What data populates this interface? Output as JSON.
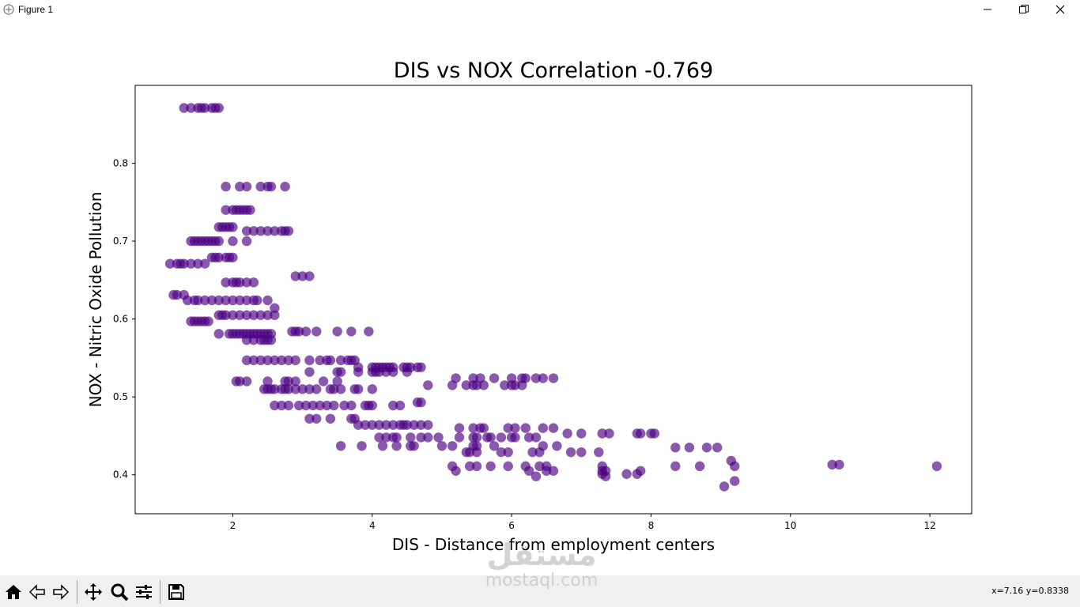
{
  "window": {
    "title": "Figure 1"
  },
  "watermark": {
    "arabic": "مستقل",
    "latin": "mostaql.com"
  },
  "status": {
    "coords": "x=7.16 y=0.8338"
  },
  "toolbar": {
    "buttons": [
      "home-icon",
      "back-icon",
      "forward-icon",
      "pan-icon",
      "zoom-icon",
      "configure-subplots-icon",
      "save-icon"
    ]
  },
  "colors": {
    "point": "#4b0082",
    "axes": "#000000"
  },
  "chart_data": {
    "type": "scatter",
    "title": "DIS vs NOX Correlation -0.769",
    "xlabel": "DIS - Distance from employment centers",
    "ylabel": "NOX - Nitric Oxide Pollution",
    "xlim": [
      0.6,
      12.6
    ],
    "ylim": [
      0.35,
      0.9
    ],
    "xticks": [
      2,
      4,
      6,
      8,
      10,
      12
    ],
    "yticks": [
      0.4,
      0.5,
      0.6,
      0.7,
      0.8
    ],
    "xtick_labels": [
      "2",
      "4",
      "6",
      "8",
      "10",
      "12"
    ],
    "ytick_labels": [
      "0.4",
      "0.5",
      "0.6",
      "0.7",
      "0.8"
    ],
    "series": [
      {
        "name": "DIS vs NOX",
        "x": [
          1.3,
          1.4,
          1.5,
          1.55,
          1.6,
          1.7,
          1.75,
          1.8,
          1.9,
          2.1,
          2.2,
          2.4,
          2.5,
          2.55,
          2.75,
          1.9,
          2.0,
          2.05,
          2.1,
          2.15,
          2.2,
          2.25,
          2.2,
          2.3,
          2.4,
          2.5,
          2.6,
          2.7,
          2.75,
          2.8,
          1.8,
          1.85,
          1.9,
          1.95,
          2.0,
          1.4,
          1.45,
          1.5,
          1.55,
          1.6,
          1.65,
          1.7,
          1.75,
          1.8,
          2.0,
          2.2,
          1.7,
          1.75,
          1.8,
          1.9,
          1.95,
          2.0,
          1.1,
          1.2,
          1.25,
          1.3,
          1.4,
          1.5,
          1.6,
          2.9,
          3.0,
          3.1,
          1.9,
          2.0,
          2.05,
          2.1,
          2.2,
          2.3,
          1.15,
          1.2,
          1.3,
          1.35,
          1.45,
          1.5,
          1.6,
          1.7,
          1.8,
          1.9,
          2.0,
          2.1,
          2.2,
          2.3,
          2.35,
          2.5,
          2.6,
          1.8,
          1.85,
          1.9,
          2.0,
          2.1,
          2.2,
          2.3,
          2.4,
          2.5,
          2.6,
          1.4,
          1.45,
          1.5,
          1.55,
          1.6,
          1.65,
          1.8,
          1.95,
          2.0,
          2.05,
          2.1,
          2.15,
          2.2,
          2.25,
          2.3,
          2.35,
          2.4,
          2.45,
          2.5,
          2.55,
          2.85,
          2.9,
          2.95,
          3.05,
          3.2,
          3.5,
          3.7,
          3.95,
          2.2,
          2.3,
          2.4,
          2.45,
          2.5,
          2.55,
          2.2,
          2.3,
          2.4,
          2.5,
          2.6,
          2.7,
          2.8,
          2.9,
          3.1,
          3.25,
          3.35,
          3.4,
          3.55,
          3.65,
          3.7,
          3.75,
          3.8,
          4.0,
          4.05,
          4.1,
          4.15,
          4.2,
          4.25,
          4.3,
          4.45,
          4.5,
          4.55,
          4.65,
          4.7,
          2.05,
          2.1,
          2.2,
          2.5,
          2.75,
          2.8,
          2.9,
          3.3,
          3.5,
          3.1,
          3.5,
          3.55,
          3.8,
          4.0,
          4.05,
          4.1,
          4.2,
          4.3,
          4.5,
          2.45,
          2.5,
          2.55,
          2.6,
          2.7,
          2.75,
          2.8,
          2.9,
          3.0,
          3.1,
          3.2,
          3.4,
          3.45,
          3.55,
          3.75,
          3.8,
          4.0,
          4.8,
          2.6,
          2.7,
          2.8,
          2.95,
          3.05,
          3.15,
          3.25,
          3.35,
          3.45,
          3.6,
          3.7,
          3.9,
          3.95,
          4.0,
          4.3,
          4.4,
          4.65,
          4.7,
          3.1,
          3.2,
          3.4,
          3.7,
          3.75,
          3.8,
          3.9,
          4.0,
          4.1,
          4.2,
          4.3,
          4.4,
          4.45,
          4.5,
          4.6,
          4.7,
          4.8,
          4.1,
          4.2,
          4.3,
          4.35,
          4.55,
          4.7,
          4.8,
          4.95,
          5.25,
          5.45,
          5.5,
          5.65,
          5.7,
          5.85,
          6.0,
          6.05,
          6.25,
          6.35,
          3.55,
          3.85,
          4.15,
          4.35,
          4.55,
          4.6,
          5.0,
          5.15,
          5.45,
          5.5,
          5.75,
          6.45,
          6.65,
          5.15,
          5.35,
          5.45,
          5.5,
          5.6,
          5.9,
          6.0,
          6.05,
          6.15,
          5.2,
          5.45,
          5.55,
          5.75,
          6.0,
          6.15,
          6.2,
          6.35,
          6.45,
          6.6,
          5.25,
          5.45,
          5.55,
          5.6,
          5.95,
          6.05,
          6.2,
          6.45,
          6.6,
          6.8,
          7.0,
          7.3,
          7.4,
          7.8,
          7.85,
          8.0,
          8.05,
          8.35,
          8.55,
          8.8,
          8.95,
          5.35,
          5.4,
          5.5,
          5.85,
          5.95,
          6.3,
          6.4,
          6.85,
          7.0,
          7.25,
          5.15,
          5.4,
          5.5,
          5.7,
          5.95,
          6.2,
          6.4,
          6.5,
          7.3,
          7.3,
          7.65,
          7.8,
          8.35,
          8.7,
          9.2,
          9.15,
          5.2,
          6.25,
          6.5,
          6.6,
          7.3,
          7.35,
          7.85,
          6.35,
          7.35,
          9.05,
          9.2,
          10.6,
          10.7,
          12.1
        ],
        "y": [
          0.871,
          0.871,
          0.871,
          0.871,
          0.871,
          0.871,
          0.871,
          0.871,
          0.77,
          0.77,
          0.77,
          0.77,
          0.77,
          0.77,
          0.77,
          0.74,
          0.74,
          0.74,
          0.74,
          0.74,
          0.74,
          0.74,
          0.713,
          0.713,
          0.713,
          0.713,
          0.713,
          0.713,
          0.713,
          0.713,
          0.718,
          0.718,
          0.718,
          0.718,
          0.718,
          0.7,
          0.7,
          0.7,
          0.7,
          0.7,
          0.7,
          0.7,
          0.7,
          0.7,
          0.7,
          0.7,
          0.679,
          0.679,
          0.679,
          0.679,
          0.679,
          0.679,
          0.671,
          0.671,
          0.671,
          0.671,
          0.671,
          0.671,
          0.671,
          0.655,
          0.655,
          0.655,
          0.647,
          0.647,
          0.647,
          0.647,
          0.647,
          0.647,
          0.631,
          0.631,
          0.631,
          0.624,
          0.624,
          0.624,
          0.624,
          0.624,
          0.624,
          0.624,
          0.624,
          0.624,
          0.624,
          0.624,
          0.624,
          0.624,
          0.614,
          0.605,
          0.605,
          0.605,
          0.605,
          0.605,
          0.605,
          0.605,
          0.605,
          0.605,
          0.605,
          0.597,
          0.597,
          0.597,
          0.597,
          0.597,
          0.597,
          0.581,
          0.581,
          0.581,
          0.581,
          0.581,
          0.581,
          0.581,
          0.581,
          0.581,
          0.581,
          0.581,
          0.581,
          0.581,
          0.581,
          0.584,
          0.584,
          0.584,
          0.584,
          0.584,
          0.584,
          0.584,
          0.584,
          0.573,
          0.573,
          0.573,
          0.573,
          0.573,
          0.573,
          0.547,
          0.547,
          0.547,
          0.547,
          0.547,
          0.547,
          0.547,
          0.547,
          0.547,
          0.547,
          0.547,
          0.547,
          0.547,
          0.547,
          0.547,
          0.547,
          0.538,
          0.538,
          0.538,
          0.538,
          0.538,
          0.538,
          0.538,
          0.538,
          0.538,
          0.538,
          0.538,
          0.538,
          0.538,
          0.52,
          0.52,
          0.52,
          0.52,
          0.52,
          0.52,
          0.52,
          0.52,
          0.52,
          0.532,
          0.532,
          0.532,
          0.532,
          0.532,
          0.532,
          0.532,
          0.532,
          0.532,
          0.532,
          0.51,
          0.51,
          0.51,
          0.51,
          0.51,
          0.51,
          0.51,
          0.51,
          0.51,
          0.51,
          0.51,
          0.51,
          0.51,
          0.51,
          0.51,
          0.51,
          0.51,
          0.515,
          0.489,
          0.489,
          0.489,
          0.489,
          0.489,
          0.489,
          0.489,
          0.489,
          0.489,
          0.489,
          0.489,
          0.489,
          0.489,
          0.489,
          0.489,
          0.489,
          0.493,
          0.493,
          0.472,
          0.472,
          0.472,
          0.472,
          0.472,
          0.464,
          0.464,
          0.464,
          0.464,
          0.464,
          0.464,
          0.464,
          0.464,
          0.464,
          0.464,
          0.464,
          0.464,
          0.448,
          0.448,
          0.448,
          0.448,
          0.448,
          0.448,
          0.448,
          0.448,
          0.448,
          0.448,
          0.448,
          0.448,
          0.448,
          0.448,
          0.448,
          0.448,
          0.448,
          0.448,
          0.437,
          0.437,
          0.437,
          0.437,
          0.437,
          0.437,
          0.437,
          0.437,
          0.437,
          0.437,
          0.437,
          0.437,
          0.437,
          0.515,
          0.515,
          0.515,
          0.515,
          0.515,
          0.515,
          0.515,
          0.515,
          0.515,
          0.524,
          0.524,
          0.524,
          0.524,
          0.524,
          0.524,
          0.524,
          0.524,
          0.524,
          0.524,
          0.46,
          0.46,
          0.46,
          0.46,
          0.46,
          0.46,
          0.46,
          0.46,
          0.46,
          0.453,
          0.453,
          0.453,
          0.453,
          0.453,
          0.453,
          0.453,
          0.453,
          0.435,
          0.435,
          0.435,
          0.435,
          0.429,
          0.429,
          0.429,
          0.429,
          0.429,
          0.429,
          0.429,
          0.429,
          0.429,
          0.429,
          0.411,
          0.411,
          0.411,
          0.411,
          0.411,
          0.411,
          0.411,
          0.411,
          0.411,
          0.401,
          0.401,
          0.401,
          0.411,
          0.411,
          0.411,
          0.418,
          0.405,
          0.405,
          0.405,
          0.405,
          0.405,
          0.405,
          0.405,
          0.398,
          0.398,
          0.385,
          0.392,
          0.413,
          0.413,
          0.411
        ],
        "color": "#4b0082",
        "alpha": 0.65
      }
    ]
  }
}
